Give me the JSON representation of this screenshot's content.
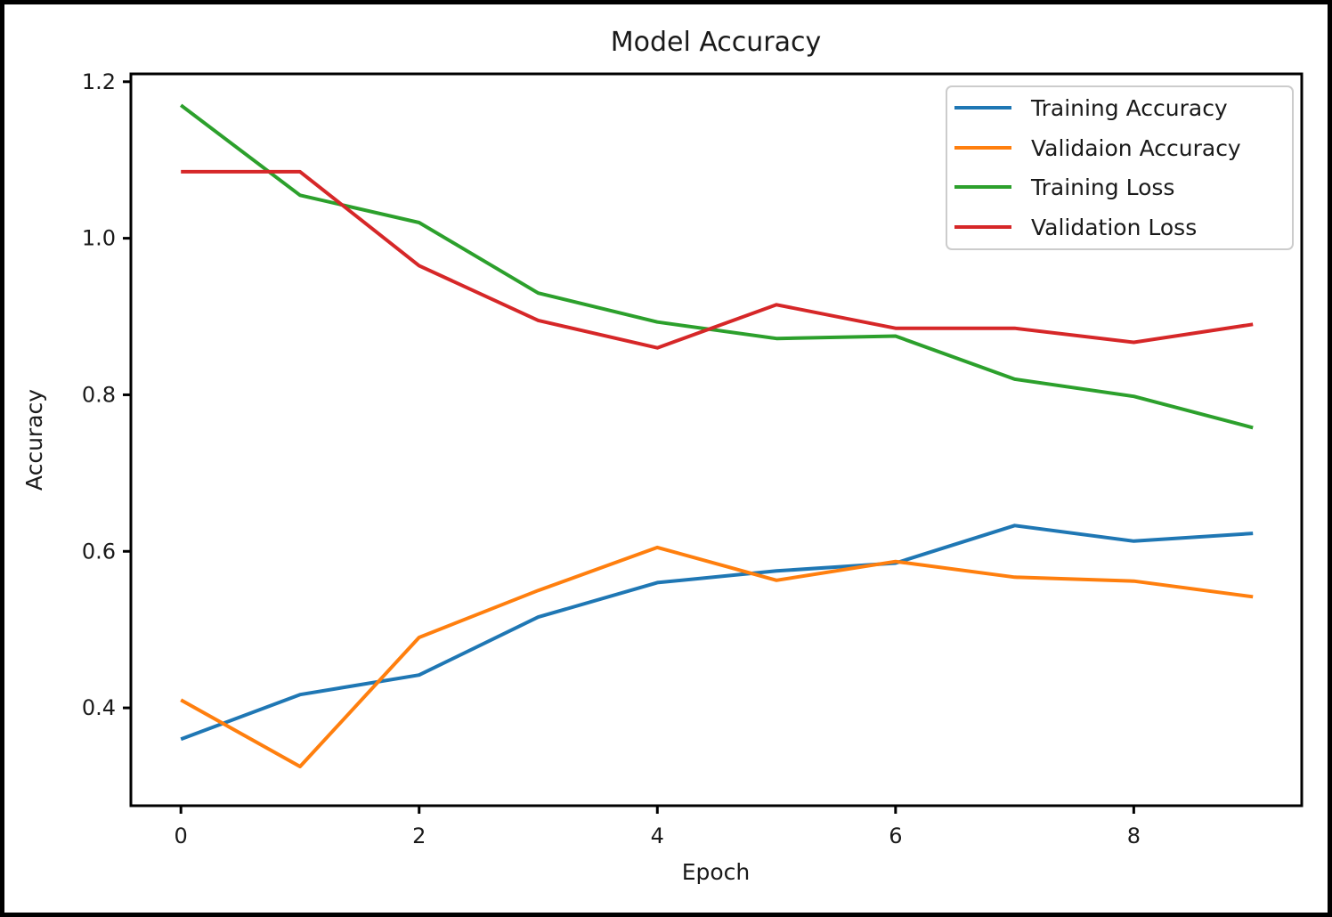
{
  "chart_data": {
    "type": "line",
    "title": "Model Accuracy",
    "xlabel": "Epoch",
    "ylabel": "Accuracy",
    "x": [
      0,
      1,
      2,
      3,
      4,
      5,
      6,
      7,
      8,
      9
    ],
    "series": [
      {
        "name": "Training Accuracy",
        "color": "#1f77b4",
        "values": [
          0.36,
          0.417,
          0.442,
          0.516,
          0.56,
          0.575,
          0.585,
          0.633,
          0.613,
          0.623
        ]
      },
      {
        "name": "Validaion Accuracy",
        "color": "#ff7f0e",
        "values": [
          0.41,
          0.325,
          0.49,
          0.55,
          0.605,
          0.563,
          0.587,
          0.567,
          0.562,
          0.542
        ]
      },
      {
        "name": "Training Loss",
        "color": "#2ca02c",
        "values": [
          1.17,
          1.055,
          1.02,
          0.93,
          0.893,
          0.872,
          0.875,
          0.82,
          0.798,
          0.758
        ]
      },
      {
        "name": "Validation Loss",
        "color": "#d62728",
        "values": [
          1.085,
          1.085,
          0.965,
          0.895,
          0.86,
          0.915,
          0.885,
          0.885,
          0.867,
          0.89
        ]
      }
    ],
    "xticks": [
      0,
      2,
      4,
      6,
      8
    ],
    "yticks": [
      0.4,
      0.6,
      0.8,
      1.0,
      1.2
    ],
    "xlim": [
      -0.42,
      9.41
    ],
    "ylim": [
      0.275,
      1.21
    ],
    "grid": false,
    "legend_position": "upper right",
    "frame_border_color": "#000000",
    "axis_color": "#000000",
    "legend_border_color": "#cccccc"
  }
}
